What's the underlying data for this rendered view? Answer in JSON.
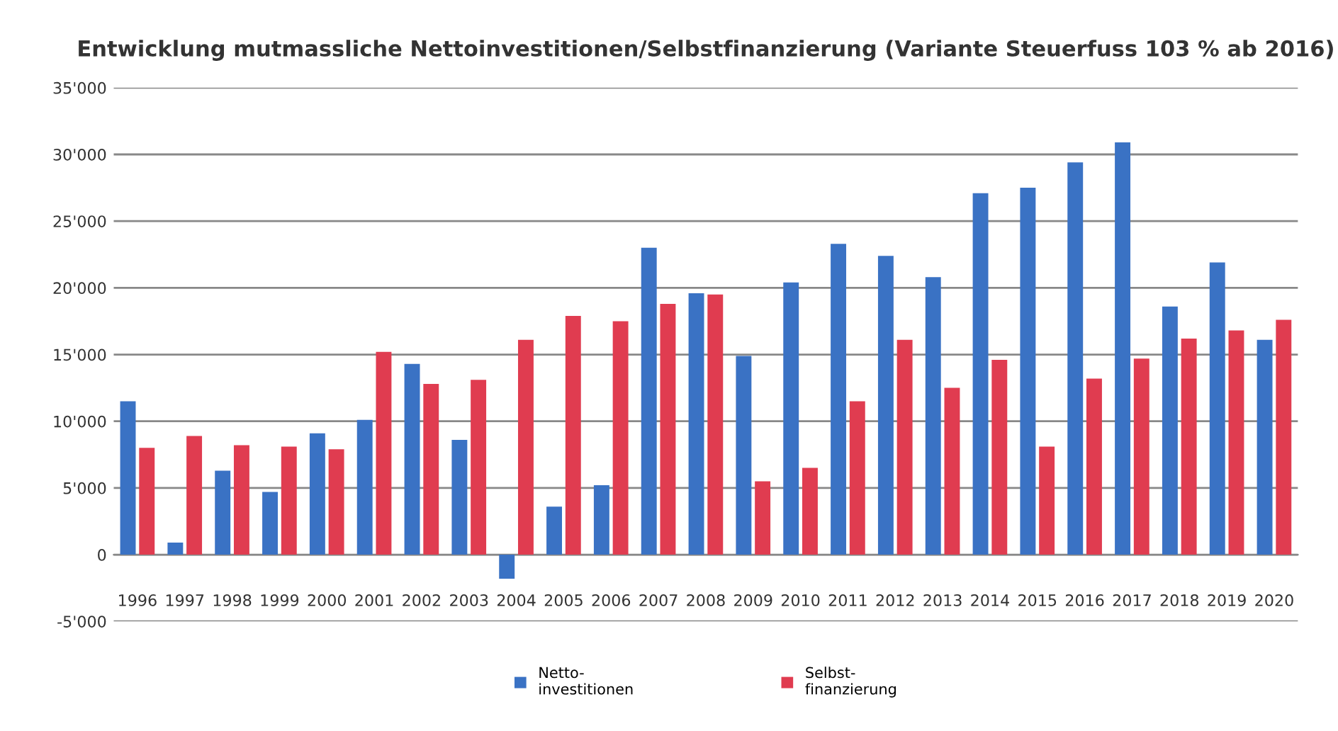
{
  "chart_data": {
    "type": "bar",
    "title": "Entwicklung mutmassliche Nettoinvestitionen/Selbstfinanzierung (Variante Steuerfuss 103 % ab 2016)",
    "categories": [
      "1996",
      "1997",
      "1998",
      "1999",
      "2000",
      "2001",
      "2002",
      "2003",
      "2004",
      "2005",
      "2006",
      "2007",
      "2008",
      "2009",
      "2010",
      "2011",
      "2012",
      "2013",
      "2014",
      "2015",
      "2016",
      "2017",
      "2018",
      "2019",
      "2020"
    ],
    "series": [
      {
        "name": "Netto-\ninvestitionen",
        "color": "#3a72c4",
        "values": [
          11500,
          900,
          6300,
          4700,
          9100,
          10100,
          14300,
          8600,
          -1800,
          3600,
          5200,
          23000,
          19600,
          14900,
          20400,
          23300,
          22400,
          20800,
          27100,
          27500,
          29400,
          30900,
          18600,
          21900,
          16100
        ]
      },
      {
        "name": "Selbst-\nfinanzierung",
        "color": "#e03c50",
        "values": [
          8000,
          8900,
          8200,
          8100,
          7900,
          15200,
          12800,
          13100,
          16100,
          17900,
          17500,
          18800,
          19500,
          5500,
          6500,
          11500,
          16100,
          12500,
          14600,
          8100,
          13200,
          14700,
          16200,
          16800,
          17600
        ]
      }
    ],
    "ylim": [
      -5000,
      35000
    ],
    "yticks": [
      {
        "value": -5000,
        "label": "-5'000"
      },
      {
        "value": 0,
        "label": "0"
      },
      {
        "value": 5000,
        "label": "5'000"
      },
      {
        "value": 10000,
        "label": "10'000"
      },
      {
        "value": 15000,
        "label": "15'000"
      },
      {
        "value": 20000,
        "label": "20'000"
      },
      {
        "value": 25000,
        "label": "25'000"
      },
      {
        "value": 30000,
        "label": "30'000"
      },
      {
        "value": 35000,
        "label": "35'000"
      }
    ],
    "grid": "y",
    "legend": "bottom"
  }
}
